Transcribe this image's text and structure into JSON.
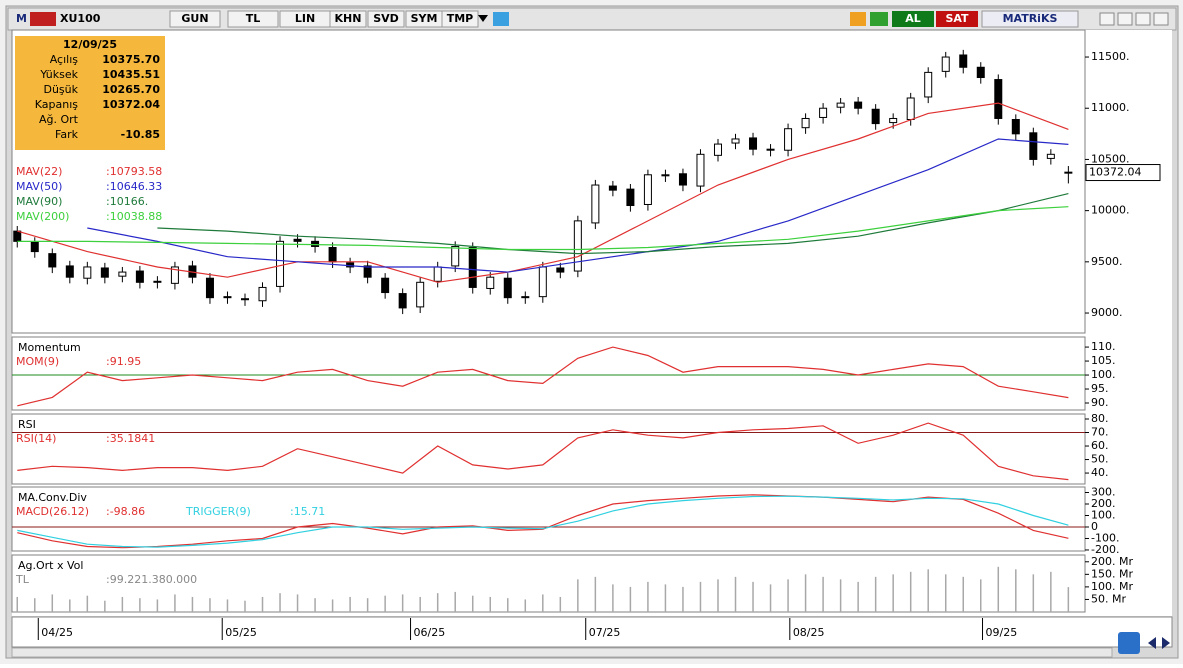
{
  "toolbar": {
    "logo": "M",
    "symbol": "XU100",
    "buttons": [
      "GUN",
      "TL",
      "LIN",
      "KHN",
      "SVD",
      "SYM",
      "TMP"
    ],
    "buy": "AL",
    "sell": "SAT",
    "brand": "MATRiKS"
  },
  "info_box": {
    "date": "12/09/25",
    "rows": [
      [
        "Açılış",
        "10375.70"
      ],
      [
        "Yüksek",
        "10435.51"
      ],
      [
        "Düşük",
        "10265.70"
      ],
      [
        "Kapanış",
        "10372.04"
      ],
      [
        "Ağ. Ort",
        null
      ],
      [
        "Fark",
        "-10.85"
      ]
    ]
  },
  "chart_data": [
    {
      "type": "candlestick",
      "up_color": "#ffffff",
      "down_color": "#000000",
      "x": [
        0,
        2,
        4,
        6,
        8,
        10,
        12,
        14,
        16,
        18,
        20,
        22,
        24,
        26,
        28,
        30,
        32,
        34,
        36,
        38,
        40,
        42,
        44,
        46,
        48,
        50,
        52,
        54,
        56,
        58,
        60,
        62,
        64,
        66,
        68,
        70,
        72,
        74,
        76,
        78,
        80,
        82,
        84,
        86,
        88,
        90,
        92,
        94,
        96,
        98,
        100,
        102,
        104,
        106,
        108,
        110,
        112,
        114,
        116,
        118,
        120
      ],
      "open": [
        9800,
        9690,
        9580,
        9460,
        9340,
        9440,
        9360,
        9410,
        9310,
        9290,
        9460,
        9340,
        9160,
        9140,
        9120,
        9260,
        9720,
        9700,
        9640,
        9490,
        9460,
        9340,
        9190,
        9060,
        9310,
        9460,
        9640,
        9240,
        9340,
        9160,
        9160,
        9440,
        9410,
        9880,
        10240,
        10210,
        10060,
        10340,
        10360,
        10240,
        10540,
        10660,
        10710,
        10590,
        10590,
        10810,
        10910,
        11010,
        11060,
        10990,
        10860,
        10890,
        11110,
        11360,
        11520,
        11400,
        11280,
        10890,
        10760,
        10510,
        10375.7
      ],
      "high": [
        9850,
        9740,
        9630,
        9510,
        9500,
        9490,
        9450,
        9460,
        9360,
        9500,
        9510,
        9390,
        9210,
        9190,
        9300,
        9750,
        9770,
        9750,
        9690,
        9540,
        9510,
        9390,
        9240,
        9350,
        9500,
        9700,
        9690,
        9400,
        9390,
        9210,
        9500,
        9490,
        9950,
        10300,
        10290,
        10260,
        10400,
        10400,
        10410,
        10600,
        10700,
        10750,
        10760,
        10650,
        10850,
        10950,
        11050,
        11100,
        11110,
        11040,
        10950,
        11150,
        11400,
        11550,
        11570,
        11450,
        11330,
        10940,
        10810,
        10600,
        10435.51
      ],
      "low": [
        9640,
        9540,
        9390,
        9290,
        9280,
        9290,
        9300,
        9240,
        9240,
        9230,
        9290,
        9090,
        9090,
        9070,
        9060,
        9200,
        9640,
        9590,
        9440,
        9390,
        9290,
        9140,
        8990,
        9000,
        9250,
        9400,
        9190,
        9180,
        9090,
        9090,
        9100,
        9340,
        9350,
        9820,
        10140,
        9990,
        10000,
        10280,
        10190,
        10180,
        10480,
        10600,
        10540,
        10530,
        10530,
        10750,
        10850,
        10950,
        10940,
        10790,
        10800,
        10830,
        11050,
        11300,
        11340,
        11240,
        10840,
        10690,
        10440,
        10450,
        10265.7
      ],
      "close": [
        9700,
        9600,
        9450,
        9350,
        9450,
        9350,
        9400,
        9300,
        9300,
        9450,
        9350,
        9150,
        9150,
        9130,
        9250,
        9700,
        9700,
        9650,
        9500,
        9450,
        9350,
        9200,
        9050,
        9300,
        9450,
        9650,
        9250,
        9350,
        9150,
        9150,
        9450,
        9400,
        9900,
        10250,
        10200,
        10050,
        10350,
        10350,
        10250,
        10550,
        10650,
        10700,
        10600,
        10600,
        10800,
        10900,
        11000,
        11050,
        11000,
        10850,
        10900,
        11100,
        11350,
        11500,
        11400,
        11300,
        10900,
        10750,
        10500,
        10550,
        10372.04
      ],
      "series": [
        {
          "name": "MAV(22)",
          "readout": ":10793.58",
          "color": "#e03030",
          "x": [
            0,
            8,
            16,
            24,
            32,
            40,
            48,
            56,
            64,
            72,
            80,
            88,
            96,
            104,
            112,
            120
          ],
          "values": [
            9800,
            9600,
            9450,
            9350,
            9500,
            9500,
            9300,
            9400,
            9550,
            9900,
            10250,
            10500,
            10700,
            10950,
            11050,
            10793.58
          ]
        },
        {
          "name": "MAV(50)",
          "readout": ":10646.33",
          "color": "#2828c8",
          "x": [
            8,
            16,
            24,
            32,
            40,
            48,
            56,
            64,
            72,
            80,
            88,
            96,
            104,
            112,
            120
          ],
          "values": [
            9830,
            9700,
            9550,
            9500,
            9450,
            9450,
            9400,
            9500,
            9600,
            9700,
            9900,
            10150,
            10400,
            10700,
            10646.33
          ]
        },
        {
          "name": "MAV(90)",
          "readout": ":10166.",
          "color": "#1e7a3a",
          "x": [
            16,
            24,
            32,
            40,
            48,
            56,
            64,
            72,
            80,
            88,
            96,
            104,
            112,
            120
          ],
          "values": [
            9830,
            9800,
            9750,
            9720,
            9680,
            9620,
            9580,
            9600,
            9650,
            9680,
            9750,
            9880,
            10000,
            10166
          ]
        },
        {
          "name": "MAV(200)",
          "readout": ":10038.88",
          "color": "#3cd03c",
          "x": [
            0,
            8,
            16,
            24,
            32,
            40,
            48,
            56,
            64,
            72,
            80,
            88,
            96,
            104,
            112,
            120
          ],
          "values": [
            9700,
            9700,
            9690,
            9680,
            9670,
            9660,
            9640,
            9620,
            9620,
            9640,
            9680,
            9720,
            9800,
            9900,
            10000,
            10038.88
          ]
        }
      ],
      "ylim": [
        8805,
        11764
      ],
      "yticks": [
        {
          "value": 9000,
          "label": "9000."
        },
        {
          "value": 9500,
          "label": "9500."
        },
        {
          "value": 10000,
          "label": "10000."
        },
        {
          "value": 10500,
          "label": "10500."
        },
        {
          "value": 11000,
          "label": "11000."
        },
        {
          "value": 11500,
          "label": "11500."
        }
      ],
      "last_price": 10372.04,
      "xlim": [
        -0.6,
        121.9
      ],
      "xticks": [
        {
          "value": 2.4,
          "label": "04/25"
        },
        {
          "value": 23.4,
          "label": "05/25"
        },
        {
          "value": 44.9,
          "label": "06/25"
        },
        {
          "value": 64.9,
          "label": "07/25"
        },
        {
          "value": 88.2,
          "label": "08/25"
        },
        {
          "value": 110.2,
          "label": "09/25"
        }
      ]
    },
    {
      "type": "line",
      "title": "Momentum",
      "x": [
        0,
        4,
        8,
        12,
        16,
        20,
        24,
        28,
        32,
        36,
        40,
        44,
        48,
        52,
        56,
        60,
        64,
        68,
        72,
        76,
        80,
        84,
        88,
        92,
        96,
        100,
        104,
        108,
        112,
        116,
        120
      ],
      "series": [
        {
          "name": "MOM(9)",
          "readout": ":91.95",
          "color": "#e03030",
          "values": [
            89,
            92,
            101,
            98,
            99,
            100,
            99,
            98,
            101,
            102,
            98,
            96,
            101,
            102,
            98,
            97,
            106,
            110,
            107,
            101,
            103,
            103,
            103,
            102,
            100,
            102,
            104,
            103,
            96,
            94,
            91.95
          ]
        }
      ],
      "hlines": [
        {
          "value": 100,
          "color": "#1e8a1e"
        }
      ],
      "ylim": [
        87.5,
        113.6
      ],
      "yticks": [
        {
          "value": 90,
          "label": "90."
        },
        {
          "value": 95,
          "label": "95."
        },
        {
          "value": 100,
          "label": "100."
        },
        {
          "value": 105,
          "label": "105."
        },
        {
          "value": 110,
          "label": "110."
        }
      ]
    },
    {
      "type": "line",
      "title": "RSI",
      "x": [
        0,
        4,
        8,
        12,
        16,
        20,
        24,
        28,
        32,
        36,
        40,
        44,
        48,
        52,
        56,
        60,
        64,
        68,
        72,
        76,
        80,
        84,
        88,
        92,
        96,
        100,
        104,
        108,
        112,
        116,
        120
      ],
      "series": [
        {
          "name": "RSI(14)",
          "readout": ":35.1841",
          "color": "#e03030",
          "values": [
            42,
            45,
            44,
            42,
            44,
            44,
            42,
            45,
            58,
            52,
            46,
            40,
            60,
            46,
            43,
            46,
            66,
            72,
            68,
            66,
            70,
            72,
            73,
            75,
            62,
            68,
            77,
            68,
            45,
            38,
            35.1841
          ]
        }
      ],
      "hlines": [
        {
          "value": 70,
          "color": "#8b1a1a"
        }
      ],
      "ylim": [
        31.9,
        83.7
      ],
      "yticks": [
        {
          "value": 40,
          "label": "40."
        },
        {
          "value": 50,
          "label": "50."
        },
        {
          "value": 60,
          "label": "60."
        },
        {
          "value": 70,
          "label": "70."
        },
        {
          "value": 80,
          "label": "80."
        }
      ]
    },
    {
      "type": "line",
      "title": "MA.Conv.Div",
      "x": [
        0,
        4,
        8,
        12,
        16,
        20,
        24,
        28,
        32,
        36,
        40,
        44,
        48,
        52,
        56,
        60,
        64,
        68,
        72,
        76,
        80,
        84,
        88,
        92,
        96,
        100,
        104,
        108,
        112,
        116,
        120
      ],
      "series": [
        {
          "name": "MACD(26.12)",
          "readout": ":-98.86",
          "color": "#e03030",
          "values": [
            -50,
            -120,
            -170,
            -180,
            -170,
            -150,
            -120,
            -100,
            0,
            30,
            -10,
            -60,
            0,
            10,
            -30,
            -20,
            100,
            200,
            230,
            250,
            270,
            280,
            270,
            260,
            240,
            220,
            260,
            240,
            120,
            -30,
            -98.86
          ]
        },
        {
          "name": "TRIGGER(9)",
          "readout": ":15.71",
          "color": "#30d0e0",
          "values": [
            -30,
            -90,
            -150,
            -170,
            -175,
            -160,
            -140,
            -110,
            -50,
            0,
            0,
            -20,
            -10,
            0,
            -10,
            -15,
            50,
            140,
            200,
            230,
            250,
            265,
            268,
            260,
            250,
            235,
            250,
            245,
            200,
            100,
            15.71
          ]
        }
      ],
      "hlines": [
        {
          "value": 0,
          "color": "#8b1a1a"
        }
      ],
      "ylim": [
        -209,
        348
      ],
      "yticks": [
        {
          "value": -200,
          "label": "-200."
        },
        {
          "value": -100,
          "label": "-100."
        },
        0,
        {
          "value": 100,
          "label": "100."
        },
        {
          "value": 200,
          "label": "200."
        },
        {
          "value": 300,
          "label": "300."
        }
      ]
    },
    {
      "type": "bar",
      "title": "Ag.Ort x Vol",
      "x": [
        0,
        2,
        4,
        6,
        8,
        10,
        12,
        14,
        16,
        18,
        20,
        22,
        24,
        26,
        28,
        30,
        32,
        34,
        36,
        38,
        40,
        42,
        44,
        46,
        48,
        50,
        52,
        54,
        56,
        58,
        60,
        62,
        64,
        66,
        68,
        70,
        72,
        74,
        76,
        78,
        80,
        82,
        84,
        86,
        88,
        90,
        92,
        94,
        96,
        98,
        100,
        102,
        104,
        106,
        108,
        110,
        112,
        114,
        116,
        118,
        120
      ],
      "series": [
        {
          "name": "TL",
          "readout": ":99.221.380.000",
          "color": "#a8a8a8",
          "values": [
            60,
            55,
            70,
            50,
            65,
            45,
            60,
            55,
            50,
            70,
            60,
            55,
            50,
            45,
            60,
            75,
            70,
            55,
            50,
            60,
            55,
            65,
            70,
            60,
            75,
            80,
            65,
            60,
            55,
            50,
            70,
            60,
            130,
            140,
            110,
            100,
            120,
            110,
            100,
            120,
            130,
            140,
            120,
            110,
            130,
            150,
            140,
            130,
            120,
            140,
            150,
            160,
            170,
            150,
            140,
            130,
            180,
            170,
            150,
            160,
            99.22
          ]
        }
      ],
      "ylim": [
        0,
        227
      ],
      "yticks": [
        {
          "value": 50,
          "label": "50. Mr"
        },
        {
          "value": 100,
          "label": "100. Mr"
        },
        {
          "value": 150,
          "label": "150. Mr"
        },
        {
          "value": 200,
          "label": "200. Mr"
        }
      ]
    }
  ]
}
